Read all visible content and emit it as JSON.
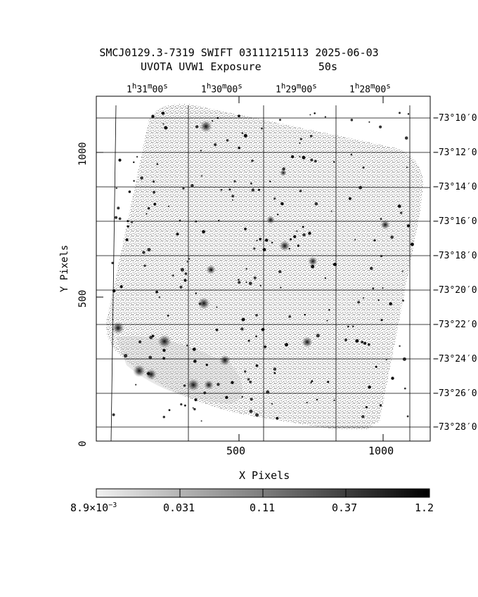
{
  "title": {
    "line1": "SMCJ0129.3-7319 SWIFT 03111215113 2025-06-03",
    "line2": "UVOTA UVW1 Exposure         50s"
  },
  "axes": {
    "x_label": "X Pixels",
    "y_label": "Y Pixels",
    "x_ticks": [
      "500",
      "1000"
    ],
    "y_ticks": [
      "0",
      "500",
      "1000"
    ],
    "ra_ticks": [
      {
        "h": "1",
        "m": "31",
        "s": "00"
      },
      {
        "h": "1",
        "m": "30",
        "s": "00"
      },
      {
        "h": "1",
        "m": "29",
        "s": "00"
      },
      {
        "h": "1",
        "m": "28",
        "s": "00"
      }
    ],
    "ra_units": {
      "h": "h",
      "m": "m",
      "s": "s"
    },
    "dec_ticks": [
      "−73°10′0",
      "−73°12′0",
      "−73°14′0",
      "−73°16′0",
      "−73°18′0",
      "−73°20′0",
      "−73°22′0",
      "−73°24′0",
      "−73°26′0",
      "−73°28′0"
    ]
  },
  "colorbar": {
    "labels": [
      "8.9×10",
      "0.031",
      "0.11",
      "0.37",
      "1.2"
    ],
    "exponent": "−3"
  }
}
